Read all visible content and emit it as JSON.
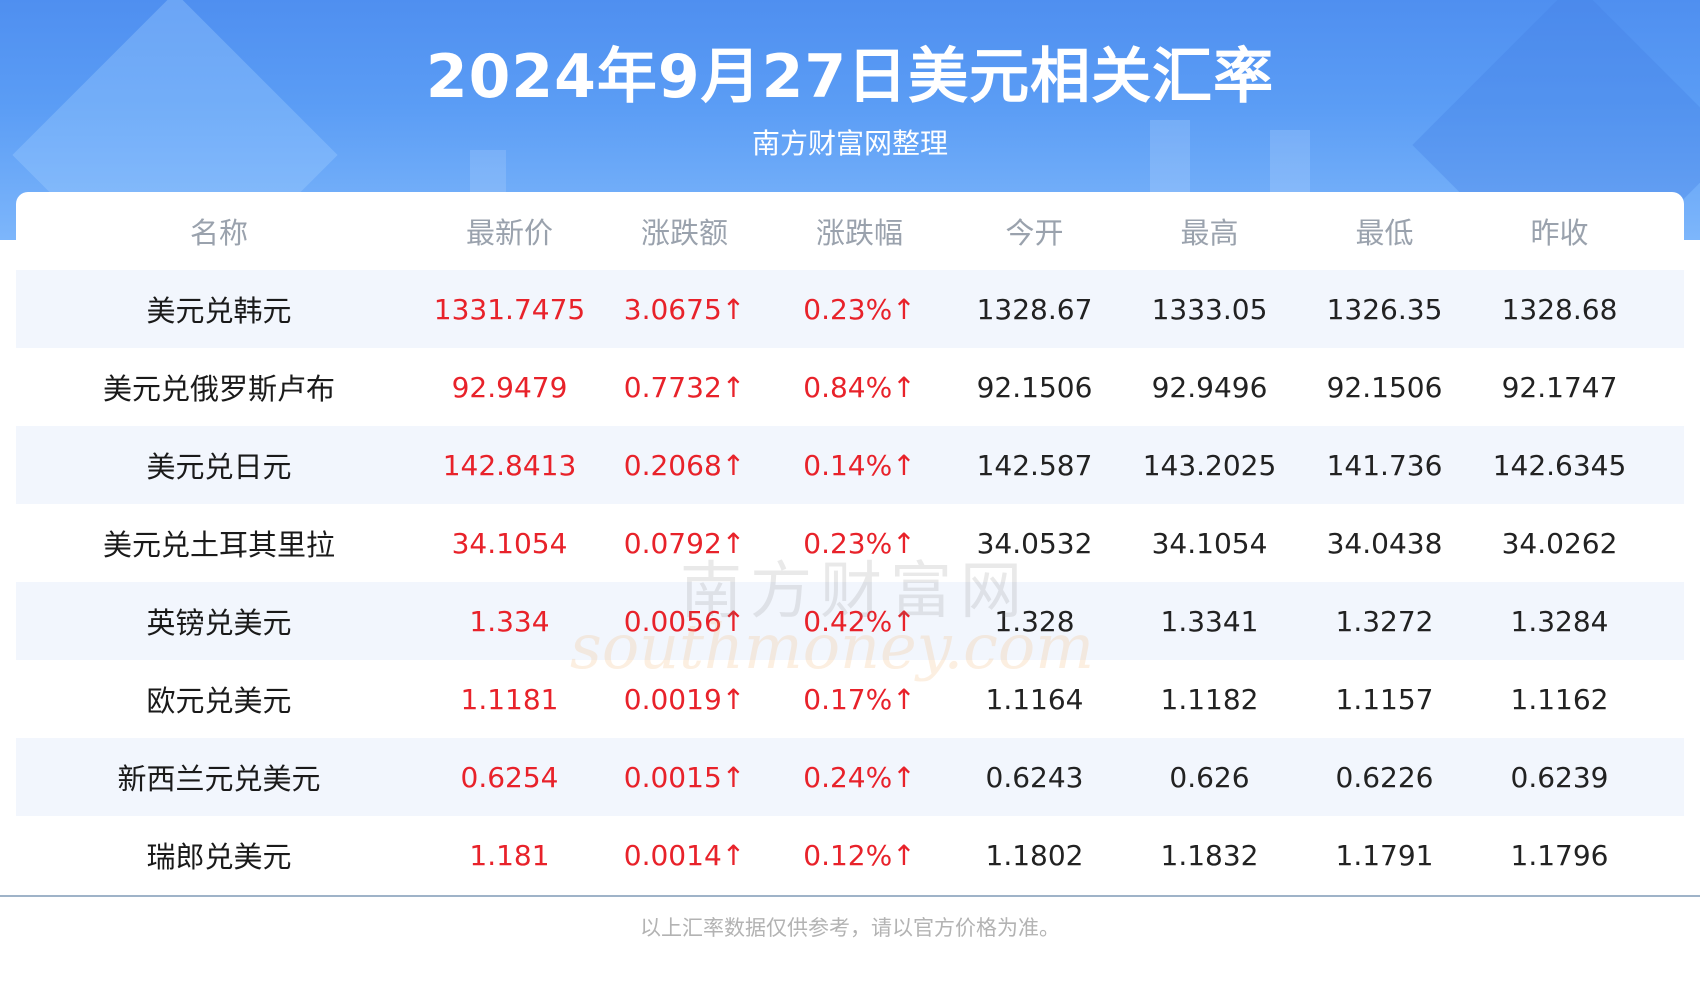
{
  "header": {
    "title": "2024年9月27日美元相关汇率",
    "subtitle": "南方财富网整理"
  },
  "table": {
    "columns": [
      "名称",
      "最新价",
      "涨跌额",
      "涨跌幅",
      "今开",
      "最高",
      "最低",
      "昨收"
    ],
    "rows": [
      [
        "美元兑韩元",
        "1331.7475",
        "3.0675↑",
        "0.23%↑",
        "1328.67",
        "1333.05",
        "1326.35",
        "1328.68"
      ],
      [
        "美元兑俄罗斯卢布",
        "92.9479",
        "0.7732↑",
        "0.84%↑",
        "92.1506",
        "92.9496",
        "92.1506",
        "92.1747"
      ],
      [
        "美元兑日元",
        "142.8413",
        "0.2068↑",
        "0.14%↑",
        "142.587",
        "143.2025",
        "141.736",
        "142.6345"
      ],
      [
        "美元兑土耳其里拉",
        "34.1054",
        "0.0792↑",
        "0.23%↑",
        "34.0532",
        "34.1054",
        "34.0438",
        "34.0262"
      ],
      [
        "英镑兑美元",
        "1.334",
        "0.0056↑",
        "0.42%↑",
        "1.328",
        "1.3341",
        "1.3272",
        "1.3284"
      ],
      [
        "欧元兑美元",
        "1.1181",
        "0.0019↑",
        "0.17%↑",
        "1.1164",
        "1.1182",
        "1.1157",
        "1.1162"
      ],
      [
        "新西兰元兑美元",
        "0.6254",
        "0.0015↑",
        "0.24%↑",
        "0.6243",
        "0.626",
        "0.6226",
        "0.6239"
      ],
      [
        "瑞郎兑美元",
        "1.181",
        "0.0014↑",
        "0.12%↑",
        "1.1802",
        "1.1832",
        "1.1791",
        "1.1796"
      ]
    ]
  },
  "watermark": {
    "cn": "南方财富网",
    "en": "southmoney.com"
  },
  "footer": {
    "note": "以上汇率数据仅供参考，请以官方价格为准。"
  },
  "colors": {
    "header_blue": "#5b9df5",
    "up_red": "#e8222a",
    "row_alt": "#f2f6fd",
    "header_text": "#9aa2ad"
  }
}
